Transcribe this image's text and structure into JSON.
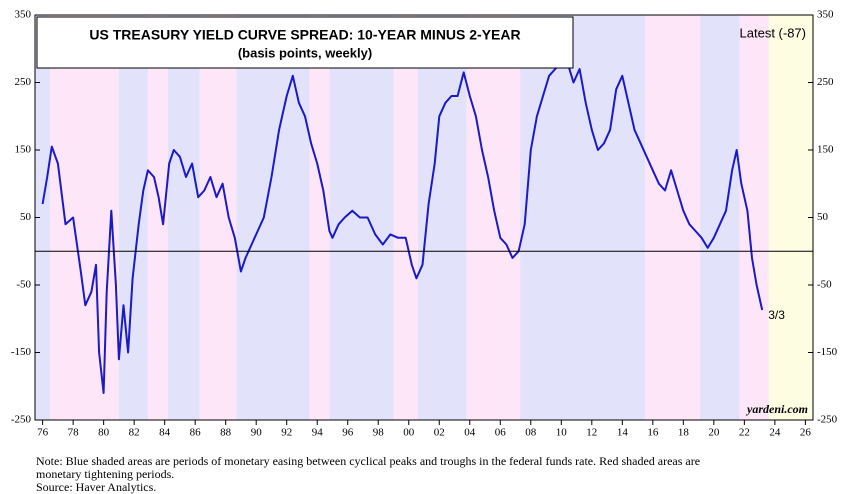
{
  "chart_data": {
    "type": "line",
    "title": "US TREASURY YIELD CURVE SPREAD: 10-YEAR MINUS 2-YEAR",
    "subtitle": "(basis points, weekly)",
    "annotations": {
      "latest": "Latest (-87)",
      "end_label": "3/3",
      "source_mark": "yardeni.com"
    },
    "notes": [
      "Note: Blue shaded areas are periods of monetary easing between cyclical peaks and troughs in the federal funds rate. Red shaded areas are",
      "monetary tightening periods.",
      "Source: Haver Analytics."
    ],
    "xlim": [
      1975.5,
      2026.5
    ],
    "ylim": [
      -250,
      350
    ],
    "yticks": [
      350,
      250,
      150,
      50,
      -50,
      -150,
      -250
    ],
    "xticks": [
      {
        "value": 1976,
        "label": "76"
      },
      {
        "value": 1978,
        "label": "78"
      },
      {
        "value": 1980,
        "label": "80"
      },
      {
        "value": 1982,
        "label": "82"
      },
      {
        "value": 1984,
        "label": "84"
      },
      {
        "value": 1986,
        "label": "86"
      },
      {
        "value": 1988,
        "label": "88"
      },
      {
        "value": 1990,
        "label": "90"
      },
      {
        "value": 1992,
        "label": "92"
      },
      {
        "value": 1994,
        "label": "94"
      },
      {
        "value": 1996,
        "label": "96"
      },
      {
        "value": 1998,
        "label": "98"
      },
      {
        "value": 2000,
        "label": "00"
      },
      {
        "value": 2002,
        "label": "02"
      },
      {
        "value": 2004,
        "label": "04"
      },
      {
        "value": 2006,
        "label": "06"
      },
      {
        "value": 2008,
        "label": "08"
      },
      {
        "value": 2010,
        "label": "10"
      },
      {
        "value": 2012,
        "label": "12"
      },
      {
        "value": 2014,
        "label": "14"
      },
      {
        "value": 2016,
        "label": "16"
      },
      {
        "value": 2018,
        "label": "18"
      },
      {
        "value": 2020,
        "label": "20"
      },
      {
        "value": 2022,
        "label": "22"
      },
      {
        "value": 2024,
        "label": "24"
      },
      {
        "value": 2026,
        "label": "26"
      }
    ],
    "reference_line": 0,
    "bands": [
      {
        "start": 1975.5,
        "end": 1976.5,
        "color": "#e2e2fa"
      },
      {
        "start": 1976.5,
        "end": 1981.0,
        "color": "#fde6f8"
      },
      {
        "start": 1981.0,
        "end": 1982.9,
        "color": "#e2e2fa"
      },
      {
        "start": 1982.9,
        "end": 1984.2,
        "color": "#fde6f8"
      },
      {
        "start": 1984.2,
        "end": 1986.3,
        "color": "#e2e2fa"
      },
      {
        "start": 1986.3,
        "end": 1988.7,
        "color": "#fde6f8"
      },
      {
        "start": 1988.7,
        "end": 1993.5,
        "color": "#e2e2fa"
      },
      {
        "start": 1993.5,
        "end": 1994.8,
        "color": "#fde6f8"
      },
      {
        "start": 1994.8,
        "end": 1999.0,
        "color": "#e2e2fa"
      },
      {
        "start": 1999.0,
        "end": 2000.6,
        "color": "#fde6f8"
      },
      {
        "start": 2000.6,
        "end": 2003.8,
        "color": "#e2e2fa"
      },
      {
        "start": 2003.8,
        "end": 2007.3,
        "color": "#fde6f8"
      },
      {
        "start": 2007.3,
        "end": 2015.5,
        "color": "#e2e2fa"
      },
      {
        "start": 2015.5,
        "end": 2019.1,
        "color": "#fde6f8"
      },
      {
        "start": 2019.1,
        "end": 2021.7,
        "color": "#e2e2fa"
      },
      {
        "start": 2021.7,
        "end": 2023.6,
        "color": "#fde6f8"
      },
      {
        "start": 2023.6,
        "end": 2026.5,
        "color": "#fdfde2"
      }
    ],
    "x": [
      1976.0,
      1976.3,
      1976.6,
      1977.0,
      1977.5,
      1978.0,
      1978.5,
      1978.8,
      1979.2,
      1979.5,
      1979.7,
      1980.0,
      1980.2,
      1980.5,
      1980.8,
      1981.0,
      1981.3,
      1981.6,
      1981.9,
      1982.3,
      1982.6,
      1982.9,
      1983.3,
      1983.6,
      1983.9,
      1984.3,
      1984.6,
      1985.0,
      1985.4,
      1985.8,
      1986.2,
      1986.6,
      1987.0,
      1987.4,
      1987.8,
      1988.2,
      1988.6,
      1989.0,
      1989.3,
      1989.7,
      1990.1,
      1990.5,
      1991.0,
      1991.5,
      1992.0,
      1992.4,
      1992.8,
      1993.2,
      1993.6,
      1994.0,
      1994.4,
      1994.8,
      1995.0,
      1995.4,
      1995.8,
      1996.3,
      1996.8,
      1997.3,
      1997.8,
      1998.3,
      1998.8,
      1999.3,
      1999.8,
      2000.2,
      2000.5,
      2000.9,
      2001.3,
      2001.7,
      2002.0,
      2002.4,
      2002.8,
      2003.2,
      2003.6,
      2004.0,
      2004.4,
      2004.8,
      2005.2,
      2005.6,
      2006.0,
      2006.4,
      2006.8,
      2007.2,
      2007.6,
      2008.0,
      2008.4,
      2008.8,
      2009.2,
      2009.6,
      2010.0,
      2010.4,
      2010.8,
      2011.2,
      2011.6,
      2012.0,
      2012.4,
      2012.8,
      2013.2,
      2013.6,
      2014.0,
      2014.4,
      2014.8,
      2015.2,
      2015.6,
      2016.0,
      2016.4,
      2016.8,
      2017.2,
      2017.6,
      2018.0,
      2018.4,
      2018.8,
      2019.2,
      2019.6,
      2020.0,
      2020.4,
      2020.8,
      2021.2,
      2021.5,
      2021.8,
      2022.2,
      2022.5,
      2022.8,
      2023.0,
      2023.17
    ],
    "series": [
      {
        "name": "10-year minus 2-year",
        "color": "#1a1ac8",
        "values": [
          70,
          110,
          155,
          130,
          40,
          50,
          -30,
          -80,
          -60,
          -20,
          -150,
          -210,
          -60,
          60,
          -50,
          -160,
          -80,
          -150,
          -40,
          40,
          90,
          120,
          110,
          80,
          40,
          130,
          150,
          140,
          110,
          130,
          80,
          90,
          110,
          80,
          100,
          50,
          20,
          -30,
          -10,
          10,
          30,
          50,
          110,
          180,
          230,
          260,
          220,
          200,
          160,
          130,
          90,
          30,
          20,
          40,
          50,
          60,
          50,
          50,
          25,
          10,
          25,
          20,
          20,
          -20,
          -40,
          -20,
          70,
          130,
          200,
          220,
          230,
          230,
          265,
          230,
          200,
          150,
          110,
          60,
          20,
          10,
          -10,
          0,
          40,
          150,
          200,
          230,
          260,
          270,
          280,
          280,
          250,
          270,
          220,
          180,
          150,
          160,
          180,
          240,
          260,
          220,
          180,
          160,
          140,
          120,
          100,
          90,
          120,
          90,
          60,
          40,
          30,
          20,
          5,
          20,
          40,
          60,
          120,
          150,
          100,
          60,
          -10,
          -50,
          -70,
          -87
        ]
      }
    ]
  }
}
